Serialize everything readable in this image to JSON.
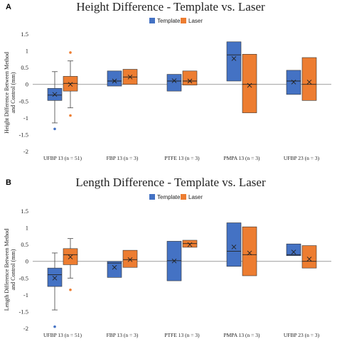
{
  "chart_data": [
    {
      "panel": "A",
      "type": "box",
      "title": "Height Difference - Template vs. Laser",
      "ylabel": [
        "Height Difference Between Method",
        "and Control (mm)"
      ],
      "ylim": [
        -2,
        1.5
      ],
      "yticks": [
        -2,
        -1.5,
        -1,
        -0.5,
        0,
        0.5,
        1,
        1.5
      ],
      "ytick_labels": [
        "-2",
        "-1.5",
        "-1",
        "-0.5",
        "0",
        "0.5",
        "1",
        "1.5"
      ],
      "categories": [
        "UFBP 13 (n = 51)",
        "FBP 13 (n = 3)",
        "PTFE 13 (n = 3)",
        "PMPA 13 (n = 3)",
        "UFBP 23  (n = 3)"
      ],
      "legend": {
        "position": "top-center"
      },
      "series": [
        {
          "name": "Template",
          "color": "#4472C4",
          "boxes": [
            {
              "q1": -0.48,
              "median": -0.32,
              "q3": -0.12,
              "mean": -0.3,
              "whisker_low": -1.15,
              "whisker_high": 0.38,
              "outliers": [
                -1.33
              ]
            },
            {
              "q1": -0.05,
              "median": 0.1,
              "q3": 0.4,
              "mean": 0.1
            },
            {
              "q1": -0.2,
              "median": 0.1,
              "q3": 0.3,
              "mean": 0.11
            },
            {
              "q1": 0.1,
              "median": 0.88,
              "q3": 1.27,
              "mean": 0.77
            },
            {
              "q1": -0.3,
              "median": 0.1,
              "q3": 0.42,
              "mean": 0.07
            }
          ]
        },
        {
          "name": "Laser",
          "color": "#ED7D31",
          "boxes": [
            {
              "q1": -0.2,
              "median": 0.03,
              "q3": 0.24,
              "mean": 0.0,
              "whisker_low": -0.7,
              "whisker_high": 0.7,
              "outliers": [
                0.95,
                -0.93
              ]
            },
            {
              "q1": 0.0,
              "median": 0.22,
              "q3": 0.45,
              "mean": 0.22
            },
            {
              "q1": -0.02,
              "median": 0.1,
              "q3": 0.4,
              "mean": 0.1
            },
            {
              "q1": -0.85,
              "median": 0.0,
              "q3": 0.9,
              "mean": -0.03
            },
            {
              "q1": -0.48,
              "median": 0.0,
              "q3": 0.8,
              "mean": 0.07
            }
          ]
        }
      ]
    },
    {
      "panel": "B",
      "type": "box",
      "title": "Length Difference - Template vs. Laser",
      "ylabel": [
        "Length Difference Between Method",
        "and Control (mm)"
      ],
      "ylim": [
        -2,
        1.5
      ],
      "yticks": [
        -2,
        -1.5,
        -1,
        -0.5,
        0,
        0.5,
        1,
        1.5
      ],
      "ytick_labels": [
        "-2",
        "-1.5",
        "-1",
        "-0.5",
        "0",
        "0.5",
        "1",
        "1.5"
      ],
      "categories": [
        "UFBP 13 (n = 51)",
        "FBP 13 (n = 3)",
        "PTFE 13 (n = 3)",
        "PMPA 13 (n = 3)",
        "UFBP 23  (n = 3)"
      ],
      "legend": {
        "position": "top-center"
      },
      "series": [
        {
          "name": "Template",
          "color": "#4472C4",
          "boxes": [
            {
              "q1": -0.75,
              "median": -0.4,
              "q3": -0.2,
              "mean": -0.5,
              "whisker_low": -1.45,
              "whisker_high": 0.25,
              "outliers": [
                -1.95
              ]
            },
            {
              "q1": -0.48,
              "median": -0.05,
              "q3": 0.0,
              "mean": -0.18
            },
            {
              "q1": -0.58,
              "median": 0.02,
              "q3": 0.6,
              "mean": 0.01
            },
            {
              "q1": -0.15,
              "median": 0.3,
              "q3": 1.15,
              "mean": 0.43
            },
            {
              "q1": 0.17,
              "median": 0.2,
              "q3": 0.52,
              "mean": 0.28
            }
          ]
        },
        {
          "name": "Laser",
          "color": "#ED7D31",
          "boxes": [
            {
              "q1": -0.1,
              "median": 0.2,
              "q3": 0.38,
              "mean": 0.13,
              "whisker_low": -0.5,
              "whisker_high": 0.68,
              "outliers": [
                -0.85
              ]
            },
            {
              "q1": -0.18,
              "median": 0.05,
              "q3": 0.33,
              "mean": 0.05
            },
            {
              "q1": 0.42,
              "median": 0.53,
              "q3": 0.63,
              "mean": 0.5
            },
            {
              "q1": -0.43,
              "median": 0.2,
              "q3": 1.03,
              "mean": 0.25
            },
            {
              "q1": -0.2,
              "median": 0.0,
              "q3": 0.47,
              "mean": 0.07
            }
          ]
        }
      ]
    }
  ]
}
